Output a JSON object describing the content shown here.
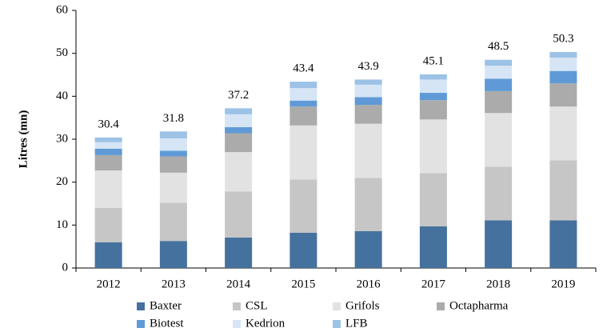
{
  "chart_data": {
    "type": "stacked_bar",
    "y_label": "Litres (mn)",
    "categories": [
      "2012",
      "2013",
      "2014",
      "2015",
      "2016",
      "2017",
      "2018",
      "2019"
    ],
    "series": [
      {
        "name": "Baxter",
        "color": "#45719e",
        "values": [
          6,
          6.3,
          7.1,
          8.2,
          8.6,
          9.7,
          11.1,
          11.1
        ]
      },
      {
        "name": "CSL",
        "color": "#c6c6c6",
        "values": [
          8,
          8.9,
          10.7,
          12.4,
          12.4,
          12.4,
          12.5,
          14.0
        ]
      },
      {
        "name": "Grifols",
        "color": "#e2e2e2",
        "values": [
          8.7,
          7.0,
          9.2,
          12.6,
          12.6,
          12.5,
          12.5,
          12.5
        ]
      },
      {
        "name": "Octapharma",
        "color": "#ababab",
        "values": [
          3.6,
          3.8,
          4.4,
          4.4,
          4.4,
          4.5,
          5.1,
          5.4
        ]
      },
      {
        "name": "Biotest",
        "color": "#5f9ad6",
        "values": [
          1.5,
          1.3,
          1.4,
          1.4,
          1.8,
          1.7,
          2.9,
          2.9
        ]
      },
      {
        "name": "Kedrion",
        "color": "#d5e5f5",
        "values": [
          1.5,
          2.9,
          3.0,
          2.9,
          2.9,
          3.1,
          3.0,
          3.1
        ]
      },
      {
        "name": "LFB",
        "color": "#9cc2e6",
        "values": [
          1.1,
          1.6,
          1.4,
          1.5,
          1.2,
          1.2,
          1.4,
          1.3
        ]
      }
    ],
    "totals": [
      30.4,
      31.8,
      37.2,
      43.4,
      43.9,
      45.1,
      48.5,
      50.3
    ],
    "ylim": [
      0,
      60
    ],
    "yticks": [
      0,
      10,
      20,
      30,
      40,
      50,
      60
    ],
    "grid": false
  }
}
